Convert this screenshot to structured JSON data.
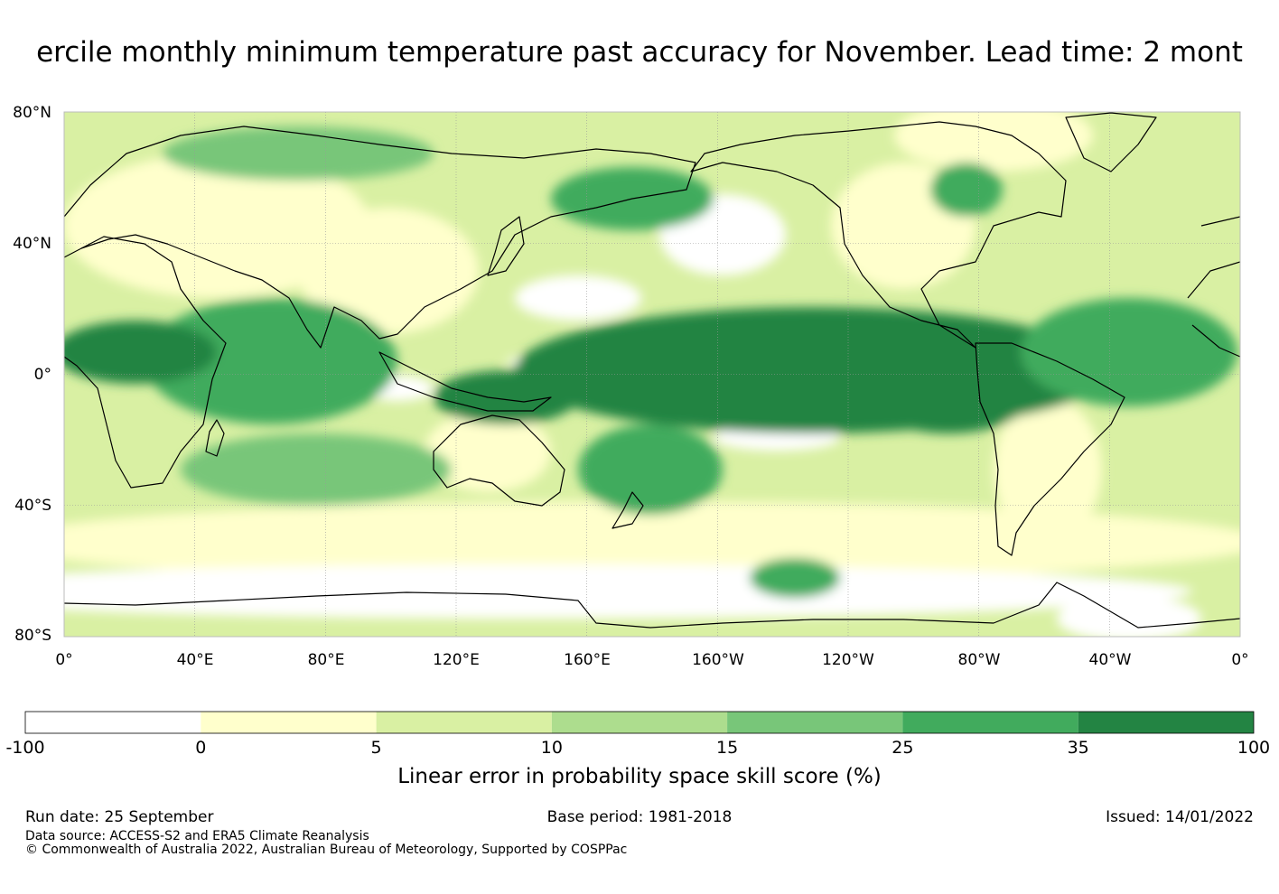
{
  "title": "ercile monthly minimum temperature past accuracy for November. Lead time: 2 mont",
  "map": {
    "lat_labels": [
      "80°N",
      "40°N",
      "0°",
      "40°S",
      "80°S"
    ],
    "lon_labels": [
      "0°",
      "40°E",
      "80°E",
      "120°E",
      "160°E",
      "160°W",
      "120°W",
      "80°W",
      "40°W",
      "0°"
    ],
    "gridlines": true
  },
  "legend": {
    "caption": "Linear error in probability space skill score (%)",
    "tick_labels": [
      "-100",
      "0",
      "5",
      "10",
      "15",
      "25",
      "35",
      "100"
    ],
    "bin_colors": [
      "#ffffff",
      "#ffffcc",
      "#d9f0a3",
      "#addd8e",
      "#78c679",
      "#41ab5d",
      "#238443"
    ]
  },
  "footer": {
    "run_date": "Run date: 25 September",
    "base_period": "Base period: 1981-2018",
    "issued": "Issued: 14/01/2022",
    "data_source": "Data source: ACCESS-S2 and ERA5 Climate Reanalysis",
    "copyright": "© Commonwealth of Australia 2022, Australian Bureau of Meteorology, Supported by COSPPac"
  }
}
